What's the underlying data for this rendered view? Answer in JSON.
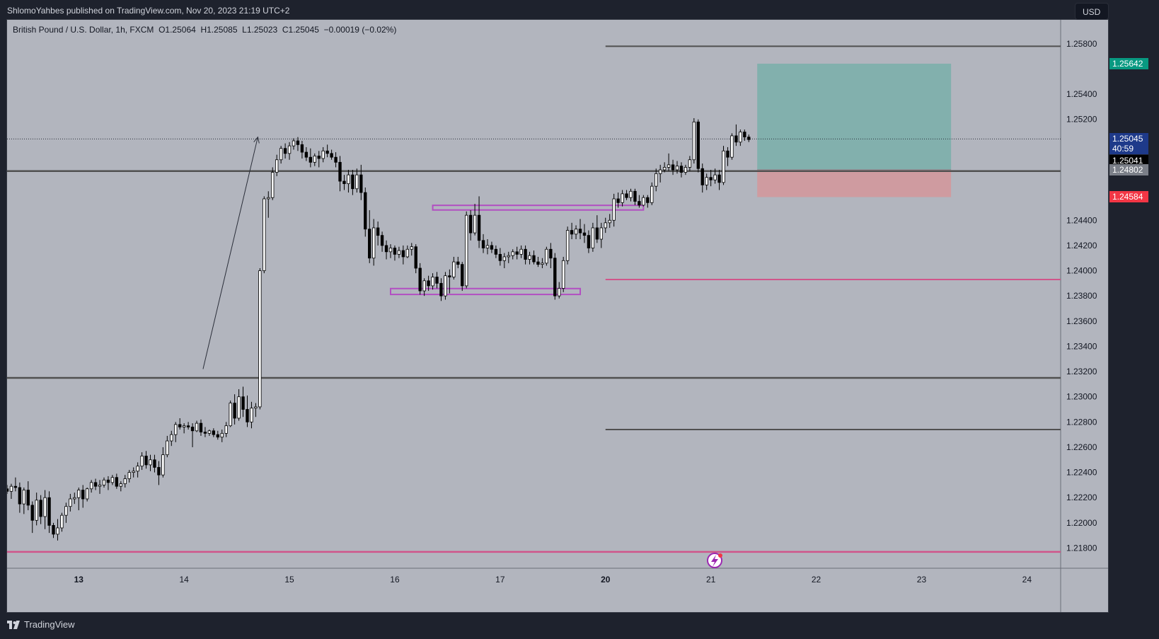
{
  "header": {
    "publish_info": "ShlomoYahbes published on TradingView.com, Nov 20, 2023 21:19 UTC+2"
  },
  "legend": {
    "symbol_line": "British Pound / U.S. Dollar, 1h, FXCM  O1.25064  H1.25085  L1.25023  C1.25045  −0.00019 (−0.02%)"
  },
  "toolbar": {
    "currency": "USD"
  },
  "price_axis": {
    "ticks": [
      "1.25800",
      "1.25400",
      "1.25200",
      "1.24400",
      "1.24200",
      "1.24000",
      "1.23800",
      "1.23600",
      "1.23400",
      "1.23200",
      "1.23000",
      "1.22800",
      "1.22600",
      "1.22400",
      "1.22200",
      "1.22000",
      "1.21800"
    ]
  },
  "time_axis": {
    "ticks": [
      "13",
      "14",
      "15",
      "16",
      "17",
      "20",
      "21",
      "22",
      "23",
      "24"
    ]
  },
  "price_tags": {
    "take_profit": {
      "value": "1.25642",
      "color": "#089981"
    },
    "last": {
      "value": "1.25045",
      "countdown": "40:59",
      "color": "#1e3a8a"
    },
    "crosshair": {
      "value": "1.25041",
      "color": "#000000"
    },
    "entry": {
      "value": "1.24802",
      "color": "#7b7f88"
    },
    "stop_loss": {
      "value": "1.24584",
      "color": "#f23645"
    }
  },
  "footer": {
    "brand": "TradingView"
  },
  "chart_data": {
    "type": "candlestick",
    "symbol": "British Pound / U.S. Dollar, 1h, FXCM",
    "ohlc_last": {
      "open": 1.25064,
      "high": 1.25085,
      "low": 1.25023,
      "close": 1.25045,
      "change": -0.00019,
      "change_pct": -0.02
    },
    "y_range": [
      1.2164,
      1.2599
    ],
    "x_range_index": [
      0,
      250
    ],
    "x_ticks": [
      {
        "label": "13",
        "i": 17
      },
      {
        "label": "14",
        "i": 42
      },
      {
        "label": "15",
        "i": 67
      },
      {
        "label": "16",
        "i": 92
      },
      {
        "label": "17",
        "i": 117
      },
      {
        "label": "20",
        "i": 142
      },
      {
        "label": "21",
        "i": 167
      },
      {
        "label": "22",
        "i": 192
      },
      {
        "label": "23",
        "i": 217
      },
      {
        "label": "24",
        "i": 242
      }
    ],
    "grid": false,
    "horizontal_lines": [
      {
        "price": 1.2578,
        "style": "ray",
        "from_i": 142,
        "color": "#505050"
      },
      {
        "price": 1.2479,
        "style": "full",
        "color": "#505050"
      },
      {
        "price": 1.2393,
        "style": "ray",
        "from_i": 142,
        "color": "#d0558a"
      },
      {
        "price": 1.2315,
        "style": "full",
        "color": "#505050"
      },
      {
        "price": 1.2274,
        "style": "ray",
        "from_i": 142,
        "color": "#505050"
      },
      {
        "price": 1.2177,
        "style": "full",
        "color": "#d0558a"
      }
    ],
    "dotted_price_line": 1.25045,
    "range_boxes": [
      {
        "top": 1.2451,
        "bottom": 1.2449,
        "from_i": 101,
        "to_i": 151,
        "color": "#b24fc2"
      },
      {
        "top": 1.2385,
        "bottom": 1.2382,
        "from_i": 91,
        "to_i": 136,
        "color": "#b24fc2"
      }
    ],
    "position": {
      "entry": 1.24802,
      "take_profit": 1.25642,
      "stop_loss": 1.24584,
      "from_i": 178,
      "to_i": 224
    },
    "arrow": {
      "from": [
        46.5,
        1.2322
      ],
      "to": [
        59.5,
        1.2506
      ]
    },
    "candles": [
      [
        1.2227,
        1.223,
        1.2223,
        1.2225
      ],
      [
        1.2225,
        1.2231,
        1.2219,
        1.2229
      ],
      [
        1.2229,
        1.2236,
        1.2225,
        1.2228
      ],
      [
        1.2228,
        1.2232,
        1.2208,
        1.2215
      ],
      [
        1.2215,
        1.2228,
        1.2207,
        1.2226
      ],
      [
        1.2226,
        1.2233,
        1.221,
        1.2214
      ],
      [
        1.2214,
        1.2217,
        1.2192,
        1.2202
      ],
      [
        1.2202,
        1.2224,
        1.2198,
        1.2218
      ],
      [
        1.2218,
        1.2222,
        1.2199,
        1.2205
      ],
      [
        1.2205,
        1.2226,
        1.2195,
        1.222
      ],
      [
        1.222,
        1.2225,
        1.2192,
        1.2198
      ],
      [
        1.2198,
        1.22,
        1.2188,
        1.2191
      ],
      [
        1.2191,
        1.2203,
        1.2186,
        1.2196
      ],
      [
        1.2196,
        1.2208,
        1.2193,
        1.2206
      ],
      [
        1.2206,
        1.2216,
        1.22,
        1.2213
      ],
      [
        1.2213,
        1.2223,
        1.2209,
        1.2219
      ],
      [
        1.2219,
        1.2224,
        1.2215,
        1.222
      ],
      [
        1.222,
        1.2228,
        1.221,
        1.2226
      ],
      [
        1.2226,
        1.223,
        1.2212,
        1.2219
      ],
      [
        1.2219,
        1.2228,
        1.2217,
        1.2227
      ],
      [
        1.2227,
        1.2234,
        1.2224,
        1.2232
      ],
      [
        1.2232,
        1.2235,
        1.2226,
        1.2229
      ],
      [
        1.2229,
        1.2234,
        1.2223,
        1.223
      ],
      [
        1.223,
        1.2236,
        1.2228,
        1.2234
      ],
      [
        1.2234,
        1.2237,
        1.2226,
        1.2232
      ],
      [
        1.2232,
        1.2238,
        1.223,
        1.2236
      ],
      [
        1.2236,
        1.2239,
        1.2227,
        1.2229
      ],
      [
        1.2229,
        1.2233,
        1.2225,
        1.2231
      ],
      [
        1.2231,
        1.2238,
        1.2228,
        1.2235
      ],
      [
        1.2235,
        1.2242,
        1.2232,
        1.224
      ],
      [
        1.224,
        1.2244,
        1.2236,
        1.2241
      ],
      [
        1.2241,
        1.2248,
        1.2236,
        1.2245
      ],
      [
        1.2245,
        1.2256,
        1.2242,
        1.2253
      ],
      [
        1.2253,
        1.2257,
        1.2243,
        1.2246
      ],
      [
        1.2246,
        1.2254,
        1.2241,
        1.225
      ],
      [
        1.225,
        1.2254,
        1.224,
        1.2244
      ],
      [
        1.2244,
        1.2249,
        1.223,
        1.2238
      ],
      [
        1.2238,
        1.226,
        1.2236,
        1.2254
      ],
      [
        1.2254,
        1.2269,
        1.2252,
        1.2265
      ],
      [
        1.2265,
        1.2273,
        1.2261,
        1.227
      ],
      [
        1.227,
        1.228,
        1.2264,
        1.2278
      ],
      [
        1.2278,
        1.2283,
        1.2274,
        1.2276
      ],
      [
        1.2276,
        1.2279,
        1.2271,
        1.2277
      ],
      [
        1.2277,
        1.228,
        1.2274,
        1.2276
      ],
      [
        1.2276,
        1.2279,
        1.226,
        1.2273
      ],
      [
        1.2273,
        1.2281,
        1.2272,
        1.2279
      ],
      [
        1.2279,
        1.2282,
        1.2269,
        1.2272
      ],
      [
        1.2272,
        1.2276,
        1.2268,
        1.2271
      ],
      [
        1.2271,
        1.2274,
        1.2269,
        1.2273
      ],
      [
        1.2273,
        1.2275,
        1.2268,
        1.227
      ],
      [
        1.227,
        1.2273,
        1.2266,
        1.2268
      ],
      [
        1.2268,
        1.2274,
        1.2264,
        1.2271
      ],
      [
        1.2271,
        1.228,
        1.2268,
        1.2277
      ],
      [
        1.2277,
        1.2297,
        1.2276,
        1.2295
      ],
      [
        1.2295,
        1.2302,
        1.2278,
        1.2283
      ],
      [
        1.2283,
        1.2306,
        1.2281,
        1.23
      ],
      [
        1.23,
        1.2308,
        1.2284,
        1.229
      ],
      [
        1.229,
        1.2301,
        1.2276,
        1.228
      ],
      [
        1.228,
        1.2296,
        1.2275,
        1.2291
      ],
      [
        1.2291,
        1.2295,
        1.2284,
        1.2292
      ],
      [
        1.2292,
        1.2402,
        1.229,
        1.24
      ],
      [
        1.24,
        1.2459,
        1.2398,
        1.2457
      ],
      [
        1.2457,
        1.2463,
        1.2442,
        1.2458
      ],
      [
        1.2458,
        1.2482,
        1.2456,
        1.2478
      ],
      [
        1.2478,
        1.2492,
        1.2475,
        1.2488
      ],
      [
        1.2488,
        1.2499,
        1.2485,
        1.2497
      ],
      [
        1.2497,
        1.2501,
        1.2489,
        1.2493
      ],
      [
        1.2493,
        1.2502,
        1.2488,
        1.2499
      ],
      [
        1.2499,
        1.2505,
        1.2496,
        1.2503
      ],
      [
        1.2503,
        1.2506,
        1.2495,
        1.25
      ],
      [
        1.25,
        1.2503,
        1.2489,
        1.2494
      ],
      [
        1.2494,
        1.2498,
        1.2487,
        1.249
      ],
      [
        1.249,
        1.2497,
        1.2482,
        1.2486
      ],
      [
        1.2486,
        1.2493,
        1.2483,
        1.2491
      ],
      [
        1.2491,
        1.2495,
        1.2482,
        1.2489
      ],
      [
        1.2489,
        1.2498,
        1.2486,
        1.2495
      ],
      [
        1.2495,
        1.25,
        1.249,
        1.2493
      ],
      [
        1.2493,
        1.2496,
        1.2488,
        1.249
      ],
      [
        1.249,
        1.2494,
        1.2482,
        1.2486
      ],
      [
        1.2486,
        1.2491,
        1.2463,
        1.2471
      ],
      [
        1.2471,
        1.2476,
        1.2464,
        1.2469
      ],
      [
        1.2469,
        1.248,
        1.2462,
        1.2476
      ],
      [
        1.2476,
        1.248,
        1.246,
        1.2465
      ],
      [
        1.2465,
        1.2481,
        1.2462,
        1.2476
      ],
      [
        1.2476,
        1.2484,
        1.2456,
        1.2462
      ],
      [
        1.2462,
        1.2466,
        1.2427,
        1.2433
      ],
      [
        1.2433,
        1.2448,
        1.2406,
        1.241
      ],
      [
        1.241,
        1.2441,
        1.2404,
        1.2434
      ],
      [
        1.2434,
        1.2439,
        1.242,
        1.2428
      ],
      [
        1.2428,
        1.2431,
        1.2415,
        1.242
      ],
      [
        1.242,
        1.2424,
        1.2409,
        1.2415
      ],
      [
        1.2415,
        1.2421,
        1.241,
        1.2418
      ],
      [
        1.2418,
        1.242,
        1.2408,
        1.2413
      ],
      [
        1.2413,
        1.2419,
        1.241,
        1.2416
      ],
      [
        1.2416,
        1.242,
        1.2405,
        1.2411
      ],
      [
        1.2411,
        1.242,
        1.241,
        1.2417
      ],
      [
        1.2417,
        1.2422,
        1.2412,
        1.2419
      ],
      [
        1.2419,
        1.2421,
        1.2398,
        1.2402
      ],
      [
        1.2402,
        1.2406,
        1.2381,
        1.2384
      ],
      [
        1.2384,
        1.2394,
        1.238,
        1.2392
      ],
      [
        1.2392,
        1.2396,
        1.2384,
        1.2388
      ],
      [
        1.2388,
        1.2398,
        1.2385,
        1.2395
      ],
      [
        1.2395,
        1.2399,
        1.2386,
        1.239
      ],
      [
        1.239,
        1.2394,
        1.2376,
        1.238
      ],
      [
        1.238,
        1.2399,
        1.2377,
        1.2396
      ],
      [
        1.2396,
        1.2401,
        1.2382,
        1.2395
      ],
      [
        1.2395,
        1.2411,
        1.2393,
        1.2407
      ],
      [
        1.2407,
        1.2411,
        1.2402,
        1.2405
      ],
      [
        1.2405,
        1.2407,
        1.2384,
        1.2388
      ],
      [
        1.2388,
        1.2447,
        1.2386,
        1.2444
      ],
      [
        1.2444,
        1.2448,
        1.2424,
        1.243
      ],
      [
        1.243,
        1.2453,
        1.2428,
        1.2444
      ],
      [
        1.2444,
        1.2459,
        1.2418,
        1.2424
      ],
      [
        1.2424,
        1.2429,
        1.2414,
        1.2418
      ],
      [
        1.2418,
        1.2425,
        1.2413,
        1.242
      ],
      [
        1.242,
        1.2423,
        1.2414,
        1.2417
      ],
      [
        1.2417,
        1.242,
        1.241,
        1.2413
      ],
      [
        1.2413,
        1.2418,
        1.2404,
        1.2408
      ],
      [
        1.2408,
        1.2414,
        1.2402,
        1.2411
      ],
      [
        1.2411,
        1.2415,
        1.2406,
        1.2412
      ],
      [
        1.2412,
        1.2417,
        1.2409,
        1.2415
      ],
      [
        1.2415,
        1.2419,
        1.2409,
        1.2413
      ],
      [
        1.2413,
        1.242,
        1.241,
        1.2417
      ],
      [
        1.2417,
        1.242,
        1.2405,
        1.2409
      ],
      [
        1.2409,
        1.2415,
        1.2405,
        1.2412
      ],
      [
        1.2412,
        1.2416,
        1.2405,
        1.2407
      ],
      [
        1.2407,
        1.2411,
        1.2403,
        1.2405
      ],
      [
        1.2405,
        1.241,
        1.2402,
        1.2406
      ],
      [
        1.2406,
        1.2419,
        1.2404,
        1.2417
      ],
      [
        1.2417,
        1.2422,
        1.2402,
        1.241
      ],
      [
        1.241,
        1.2414,
        1.2377,
        1.238
      ],
      [
        1.238,
        1.2391,
        1.2378,
        1.2386
      ],
      [
        1.2386,
        1.2411,
        1.2383,
        1.2408
      ],
      [
        1.2408,
        1.2435,
        1.2405,
        1.2432
      ],
      [
        1.2432,
        1.2438,
        1.2425,
        1.2429
      ],
      [
        1.2429,
        1.2436,
        1.2425,
        1.2433
      ],
      [
        1.2433,
        1.2441,
        1.2425,
        1.243
      ],
      [
        1.243,
        1.2437,
        1.2422,
        1.2428
      ],
      [
        1.2428,
        1.2432,
        1.2414,
        1.2418
      ],
      [
        1.2418,
        1.2438,
        1.2415,
        1.2434
      ],
      [
        1.2434,
        1.2444,
        1.2422,
        1.2425
      ],
      [
        1.2425,
        1.2438,
        1.2418,
        1.2434
      ],
      [
        1.2434,
        1.2442,
        1.243,
        1.2438
      ],
      [
        1.2438,
        1.2445,
        1.2434,
        1.244
      ],
      [
        1.244,
        1.2461,
        1.2435,
        1.2457
      ],
      [
        1.2457,
        1.2462,
        1.245,
        1.2454
      ],
      [
        1.2454,
        1.2464,
        1.2451,
        1.2461
      ],
      [
        1.2461,
        1.2464,
        1.2456,
        1.2458
      ],
      [
        1.2458,
        1.2465,
        1.2455,
        1.2463
      ],
      [
        1.2463,
        1.2465,
        1.2452,
        1.2455
      ],
      [
        1.2455,
        1.246,
        1.245,
        1.2452
      ],
      [
        1.2452,
        1.246,
        1.2451,
        1.2458
      ],
      [
        1.2458,
        1.246,
        1.245,
        1.2454
      ],
      [
        1.2454,
        1.247,
        1.2452,
        1.2467
      ],
      [
        1.2467,
        1.2481,
        1.2463,
        1.2477
      ],
      [
        1.2477,
        1.2484,
        1.247,
        1.248
      ],
      [
        1.248,
        1.2486,
        1.2478,
        1.2482
      ],
      [
        1.2482,
        1.2493,
        1.2479,
        1.2484
      ],
      [
        1.2484,
        1.2488,
        1.2476,
        1.248
      ],
      [
        1.248,
        1.2487,
        1.2477,
        1.2483
      ],
      [
        1.2483,
        1.2486,
        1.2474,
        1.2478
      ],
      [
        1.2478,
        1.2484,
        1.2476,
        1.2482
      ],
      [
        1.2482,
        1.2491,
        1.2479,
        1.2488
      ],
      [
        1.2488,
        1.2521,
        1.2485,
        1.2518
      ],
      [
        1.2518,
        1.252,
        1.2478,
        1.2481
      ],
      [
        1.2481,
        1.2485,
        1.2462,
        1.2468
      ],
      [
        1.2468,
        1.2477,
        1.2464,
        1.2474
      ],
      [
        1.2474,
        1.248,
        1.2467,
        1.2472
      ],
      [
        1.2472,
        1.2481,
        1.2469,
        1.2476
      ],
      [
        1.2476,
        1.248,
        1.2464,
        1.247
      ],
      [
        1.247,
        1.2499,
        1.2468,
        1.2495
      ],
      [
        1.2495,
        1.2498,
        1.2483,
        1.249
      ],
      [
        1.249,
        1.2509,
        1.2488,
        1.2507
      ],
      [
        1.2507,
        1.2516,
        1.2499,
        1.2502
      ],
      [
        1.2502,
        1.2512,
        1.2499,
        1.251
      ],
      [
        1.251,
        1.2512,
        1.2503,
        1.2506
      ],
      [
        1.2506,
        1.2508,
        1.2502,
        1.2504
      ]
    ]
  }
}
